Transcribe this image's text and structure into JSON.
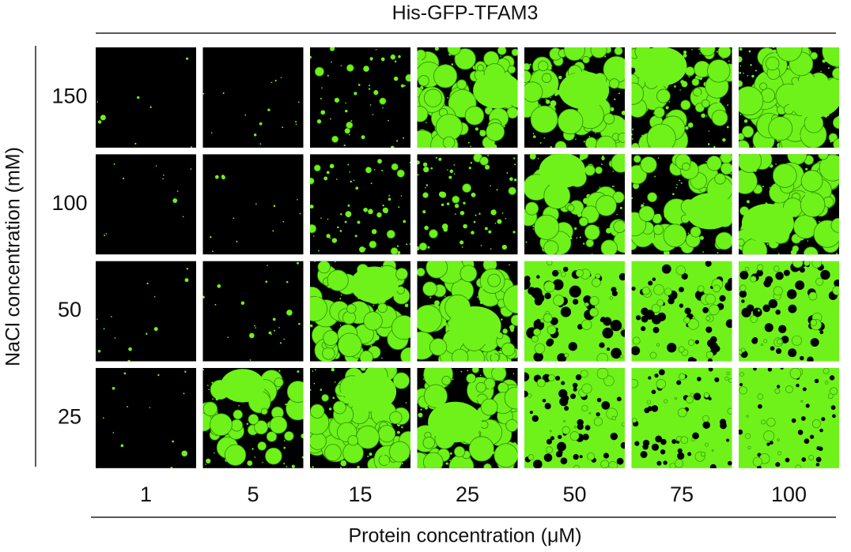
{
  "figure": {
    "title": "His-GFP-TFAM3",
    "row_labels": [
      "150",
      "100",
      "50",
      "25"
    ],
    "column_labels": [
      "1",
      "5",
      "15",
      "25",
      "50",
      "75",
      "100"
    ],
    "y_axis_label": "NaCl concentration (mM)",
    "x_axis_label": "Protein concentration (μM)"
  }
}
